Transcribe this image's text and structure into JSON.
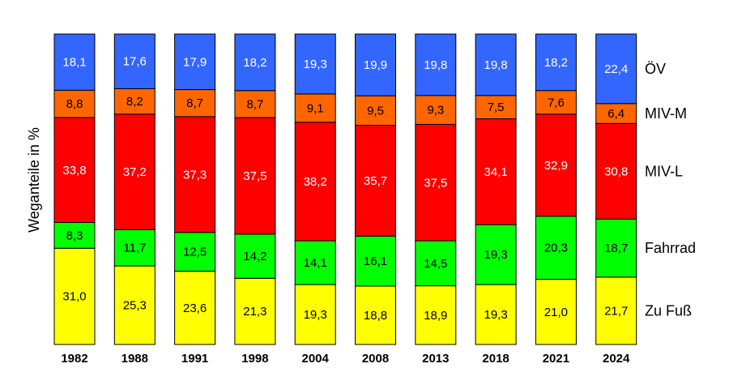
{
  "chart_data": {
    "type": "bar",
    "stacked": true,
    "ylabel": "Weganteile in %",
    "categories": [
      "1982",
      "1988",
      "1991",
      "1998",
      "2004",
      "2008",
      "2013",
      "2018",
      "2021",
      "2024"
    ],
    "series": [
      {
        "name": "Zu Fuß",
        "color": "#ffff00",
        "values": [
          31.0,
          25.3,
          23.6,
          21.3,
          19.3,
          18.8,
          18.9,
          19.3,
          21.0,
          21.7
        ],
        "labels": [
          "31,0",
          "25,3",
          "23,6",
          "21,3",
          "19,3",
          "18,8",
          "18,9",
          "19,3",
          "21,0",
          "21,7"
        ]
      },
      {
        "name": "Fahrrad",
        "color": "#00ff00",
        "values": [
          8.3,
          11.7,
          12.5,
          14.2,
          14.1,
          16.1,
          14.5,
          19.3,
          20.3,
          18.7
        ],
        "labels": [
          "8,3",
          "11,7",
          "12,5",
          "14,2",
          "14,1",
          "16,1",
          "14,5",
          "19,3",
          "20,3",
          "18,7"
        ]
      },
      {
        "name": "MIV-L",
        "color": "#ff0000",
        "values": [
          33.8,
          37.2,
          37.3,
          37.5,
          38.2,
          35.7,
          37.5,
          34.1,
          32.9,
          30.8
        ],
        "labels": [
          "33,8",
          "37,2",
          "37,3",
          "37,5",
          "38,2",
          "35,7",
          "37,5",
          "34,1",
          "32,9",
          "30,8"
        ]
      },
      {
        "name": "MIV-M",
        "color": "#ff6600",
        "values": [
          8.8,
          8.2,
          8.7,
          8.7,
          9.1,
          9.5,
          9.3,
          7.5,
          7.6,
          6.4
        ],
        "labels": [
          "8,8",
          "8,2",
          "8,7",
          "8,7",
          "9,1",
          "9,5",
          "9,3",
          "7,5",
          "7,6",
          "6,4"
        ]
      },
      {
        "name": "ÖV",
        "color": "#3366ff",
        "values": [
          18.1,
          17.6,
          17.9,
          18.2,
          19.3,
          19.9,
          19.8,
          19.8,
          18.2,
          22.4
        ],
        "labels": [
          "18,1",
          "17,6",
          "17,9",
          "18,2",
          "19,3",
          "19,9",
          "19,8",
          "19,8",
          "18,2",
          "22,4"
        ]
      }
    ],
    "label_colors": {
      "Zu Fuß": "#000000",
      "Fahrrad": "#000000",
      "MIV-L": "#ffffff",
      "MIV-M": "#000000",
      "ÖV": "#ffffff"
    },
    "legend": "right",
    "grid": false
  }
}
